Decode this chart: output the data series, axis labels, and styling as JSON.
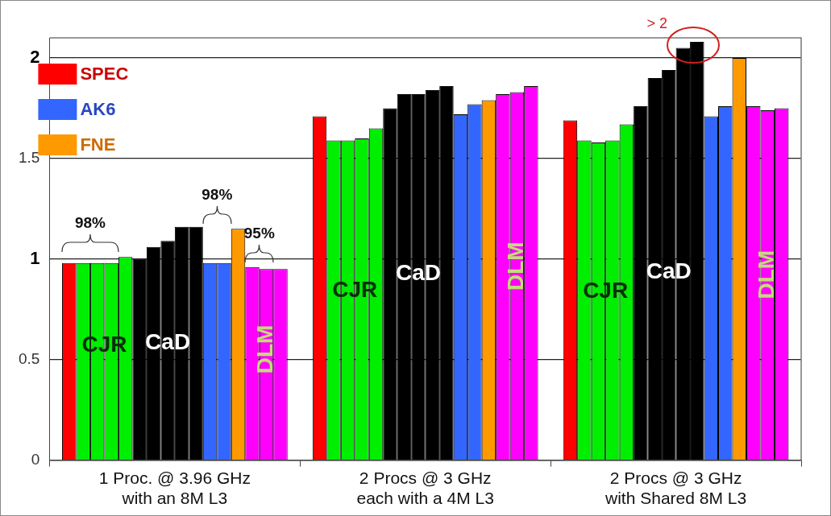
{
  "chart_data": {
    "type": "bar",
    "categories": [
      "1 Proc. @ 3.96 GHz\nwith an 8M L3",
      "2 Procs @ 3 GHz\neach with a 4M L3",
      "2 Procs @ 3 GHz\nwith Shared 8M L3"
    ],
    "series": [
      {
        "name": "SPEC",
        "color": "#ff0000",
        "values": [
          0.98,
          1.71,
          1.69
        ]
      },
      {
        "name": "CJR",
        "color": "#00ee00",
        "values": [
          0.98,
          1.59,
          1.59
        ]
      },
      {
        "color": "#00ee00",
        "values": [
          0.98,
          1.59,
          1.58
        ]
      },
      {
        "color": "#00ee00",
        "values": [
          0.98,
          1.6,
          1.59
        ]
      },
      {
        "color": "#00ee00",
        "values": [
          1.01,
          1.65,
          1.67
        ]
      },
      {
        "name": "CaD",
        "color": "#000000",
        "values": [
          1.0,
          1.75,
          1.76
        ]
      },
      {
        "color": "#000000",
        "values": [
          1.06,
          1.82,
          1.9
        ]
      },
      {
        "color": "#000000",
        "values": [
          1.09,
          1.82,
          1.94
        ]
      },
      {
        "color": "#000000",
        "values": [
          1.16,
          1.84,
          2.05
        ]
      },
      {
        "color": "#000000",
        "values": [
          1.16,
          1.86,
          2.08
        ]
      },
      {
        "name": "AK6",
        "color": "#3366ff",
        "values": [
          0.98,
          1.72,
          1.71
        ]
      },
      {
        "color": "#3366ff",
        "values": [
          0.98,
          1.77,
          1.76
        ]
      },
      {
        "name": "FNE",
        "color": "#ff9900",
        "values": [
          1.15,
          1.79,
          2.0
        ]
      },
      {
        "name": "DLM",
        "color": "#ff00ff",
        "values": [
          0.96,
          1.82,
          1.76
        ]
      },
      {
        "color": "#ff00ff",
        "values": [
          0.95,
          1.83,
          1.74
        ]
      },
      {
        "color": "#ff00ff",
        "values": [
          0.95,
          1.86,
          1.75
        ]
      }
    ],
    "ylim": [
      0,
      2.1
    ],
    "yticks": [
      0,
      0.5,
      1,
      1.5,
      2
    ],
    "grid": "y",
    "legend": "top left",
    "annotations": [
      "98%",
      "98%",
      "95%",
      "> 2"
    ]
  }
}
